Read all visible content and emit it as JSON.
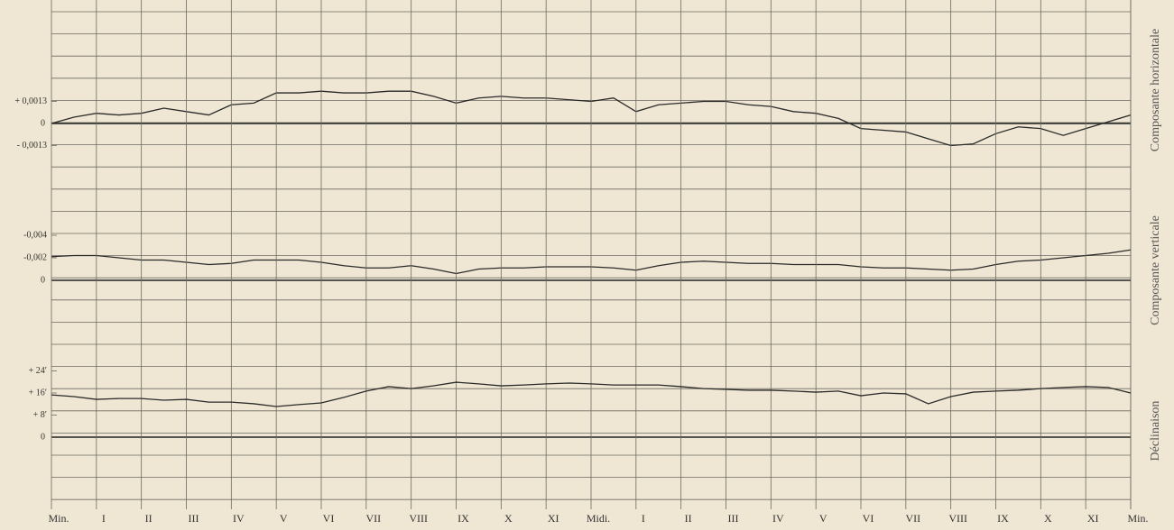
{
  "chart_data": [
    {
      "type": "line",
      "ylabel": "Composante horizontale",
      "xlim": [
        0,
        24
      ],
      "ylim": [
        -0.0039,
        0.0065
      ],
      "yticks": [
        {
          "value": 0.0013,
          "label": "+ 0,0013"
        },
        0,
        {
          "value": -0.0013,
          "label": "- 0,0013"
        }
      ],
      "x": [
        0,
        0.5,
        1,
        1.5,
        2,
        2.5,
        3,
        3.5,
        4,
        4.5,
        5,
        5.5,
        6,
        6.5,
        7,
        7.5,
        8,
        8.5,
        9,
        9.5,
        10,
        10.5,
        11,
        11.5,
        12,
        12.5,
        13,
        13.5,
        14,
        14.5,
        15,
        15.5,
        16,
        16.5,
        17,
        17.5,
        18,
        18.5,
        19,
        19.5,
        20,
        20.5,
        21,
        21.5,
        22,
        22.5,
        23,
        23.5,
        24
      ],
      "series": [
        {
          "color": "#2a2a2a",
          "values": [
            0,
            0.00037,
            0.0006,
            0.0005,
            0.0006,
            0.0009,
            0.0007,
            0.0005,
            0.0011,
            0.0012,
            0.0018,
            0.0018,
            0.0019,
            0.0018,
            0.0018,
            0.0019,
            0.0019,
            0.0016,
            0.0012,
            0.0015,
            0.0016,
            0.0015,
            0.0015,
            0.0014,
            0.0013,
            0.0015,
            0.0007,
            0.0011,
            0.0012,
            0.0013,
            0.0013,
            0.0011,
            0.001,
            0.0007,
            0.0006,
            0.0003,
            -0.0003,
            -0.0004,
            -0.0005,
            -0.0009,
            -0.0013,
            -0.0012,
            -0.0006,
            -0.0002,
            -0.0003,
            -0.0007,
            -0.0003,
            0.0001,
            0.0005
          ]
        }
      ]
    },
    {
      "type": "line",
      "ylabel": "Composante verticale",
      "xlim": [
        0,
        24
      ],
      "ylim": [
        0.002,
        -0.006
      ],
      "yticks": [
        {
          "value": -0.004,
          "label": "-0,004"
        },
        {
          "value": -0.002,
          "label": "-0,002"
        },
        0
      ],
      "x": [
        0,
        0.5,
        1,
        1.5,
        2,
        2.5,
        3,
        3.5,
        4,
        4.5,
        5,
        5.5,
        6,
        6.5,
        7,
        7.5,
        8,
        8.5,
        9,
        9.5,
        10,
        10.5,
        11,
        11.5,
        12,
        12.5,
        13,
        13.5,
        14,
        14.5,
        15,
        15.5,
        16,
        16.5,
        17,
        17.5,
        18,
        18.5,
        19,
        19.5,
        20,
        20.5,
        21,
        21.5,
        22,
        22.5,
        23,
        23.5,
        24
      ],
      "series": [
        {
          "color": "#2a2a2a",
          "values": [
            -0.0021,
            -0.0022,
            -0.0022,
            -0.002,
            -0.0018,
            -0.0018,
            -0.0016,
            -0.0014,
            -0.0015,
            -0.0018,
            -0.0018,
            -0.0018,
            -0.0016,
            -0.0013,
            -0.0011,
            -0.0011,
            -0.0013,
            -0.001,
            -0.0006,
            -0.001,
            -0.0011,
            -0.0011,
            -0.0012,
            -0.0012,
            -0.0012,
            -0.0011,
            -0.0009,
            -0.0013,
            -0.0016,
            -0.0017,
            -0.0016,
            -0.0015,
            -0.0015,
            -0.0014,
            -0.0014,
            -0.0014,
            -0.0012,
            -0.0011,
            -0.0011,
            -0.001,
            -0.0009,
            -0.001,
            -0.0014,
            -0.0017,
            -0.0018,
            -0.002,
            -0.0022,
            -0.0024,
            -0.0027
          ]
        }
      ]
    },
    {
      "type": "line",
      "ylabel": "Déclinaison",
      "xlim": [
        0,
        24
      ],
      "ylim": [
        -8,
        32
      ],
      "yticks": [
        {
          "value": 24,
          "label": "+ 24′"
        },
        {
          "value": 16,
          "label": "+ 16′"
        },
        {
          "value": 8,
          "label": "+ 8′"
        },
        0
      ],
      "xticks": [
        {
          "value": 0,
          "label": "Min."
        },
        {
          "value": 1,
          "label": "I"
        },
        {
          "value": 2,
          "label": "II"
        },
        {
          "value": 3,
          "label": "III"
        },
        {
          "value": 4,
          "label": "IV"
        },
        {
          "value": 5,
          "label": "V"
        },
        {
          "value": 6,
          "label": "VI"
        },
        {
          "value": 7,
          "label": "VII"
        },
        {
          "value": 8,
          "label": "VIII"
        },
        {
          "value": 9,
          "label": "IX"
        },
        {
          "value": 10,
          "label": "X"
        },
        {
          "value": 11,
          "label": "XI"
        },
        {
          "value": 12,
          "label": "Midi."
        },
        {
          "value": 13,
          "label": "I"
        },
        {
          "value": 14,
          "label": "II"
        },
        {
          "value": 15,
          "label": "III"
        },
        {
          "value": 16,
          "label": "IV"
        },
        {
          "value": 17,
          "label": "V"
        },
        {
          "value": 18,
          "label": "VI"
        },
        {
          "value": 19,
          "label": "VII"
        },
        {
          "value": 20,
          "label": "VIII"
        },
        {
          "value": 21,
          "label": "IX"
        },
        {
          "value": 22,
          "label": "X"
        },
        {
          "value": 23,
          "label": "XI"
        },
        {
          "value": 24,
          "label": "Min."
        }
      ],
      "x": [
        0,
        0.5,
        1,
        1.5,
        2,
        2.5,
        3,
        3.5,
        4,
        4.5,
        5,
        5.5,
        6,
        6.5,
        7,
        7.5,
        8,
        8.5,
        9,
        9.5,
        10,
        10.5,
        11,
        11.5,
        12,
        12.5,
        13,
        13.5,
        14,
        14.5,
        15,
        15.5,
        16,
        16.5,
        17,
        17.5,
        18,
        18.5,
        19,
        19.5,
        20,
        20.5,
        21,
        21.5,
        22,
        22.5,
        23,
        23.5,
        24
      ],
      "series": [
        {
          "color": "#2a2a2a",
          "values": [
            15.3,
            14.7,
            13.7,
            14,
            14,
            13.4,
            13.7,
            12.7,
            12.7,
            12.1,
            11.1,
            11.8,
            12.4,
            14.4,
            16.7,
            18.3,
            17.6,
            18.6,
            19.9,
            19.3,
            18.6,
            18.9,
            19.3,
            19.6,
            19.3,
            18.9,
            18.9,
            18.9,
            18.3,
            17.6,
            17.3,
            17,
            17,
            16.7,
            16.3,
            16.7,
            15,
            16,
            15.7,
            12.1,
            14.7,
            16.3,
            16.7,
            17,
            17.6,
            18,
            18.3,
            18,
            16
          ]
        }
      ]
    }
  ]
}
